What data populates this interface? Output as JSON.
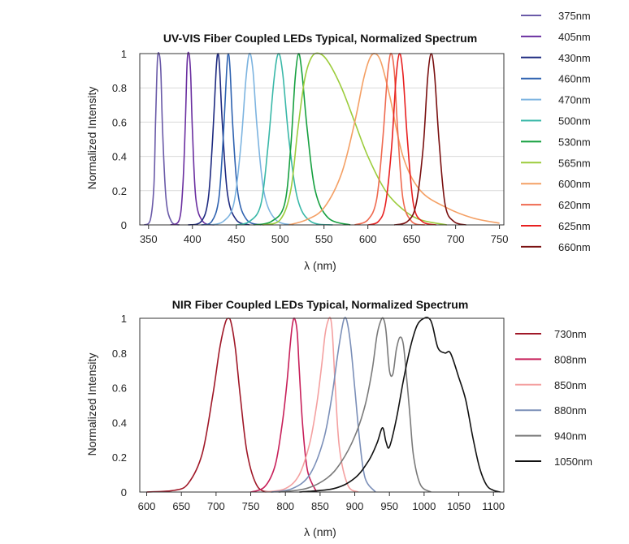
{
  "chart_data": [
    {
      "type": "line",
      "title": "UV-VIS Fiber Coupled LEDs Typical, Normalized Spectrum",
      "xlabel": "λ (nm)",
      "ylabel": "Normalized Intensity",
      "xlim": [
        340,
        755
      ],
      "ylim": [
        0,
        1
      ],
      "xticks": [
        350,
        400,
        450,
        500,
        550,
        600,
        650,
        700,
        750
      ],
      "yticks": [
        0,
        0.2,
        0.4,
        0.6,
        0.8,
        1
      ],
      "ytick_labels": [
        "0",
        "0.2",
        "0.4",
        "0.6",
        "0.8",
        "1"
      ],
      "grid": "horizontal",
      "legend_position": "right",
      "series": [
        {
          "name": "375nm",
          "color": "#6a5aa8",
          "x": [
            345,
            352,
            356,
            358,
            360,
            362,
            364,
            366,
            370,
            376,
            385
          ],
          "y": [
            0,
            0.03,
            0.22,
            0.6,
            0.95,
            1,
            0.9,
            0.55,
            0.15,
            0.02,
            0
          ]
        },
        {
          "name": "405nm",
          "color": "#6a2fa0",
          "x": [
            375,
            385,
            389,
            392,
            394,
            396,
            398,
            400,
            404,
            412,
            425
          ],
          "y": [
            0,
            0.03,
            0.22,
            0.6,
            0.95,
            1,
            0.88,
            0.55,
            0.15,
            0.02,
            0
          ]
        },
        {
          "name": "430nm",
          "color": "#1e2a80",
          "x": [
            395,
            410,
            418,
            423,
            427,
            429,
            431,
            434,
            440,
            450,
            465
          ],
          "y": [
            0,
            0.02,
            0.15,
            0.5,
            0.9,
            1,
            0.92,
            0.6,
            0.18,
            0.03,
            0
          ]
        },
        {
          "name": "460nm",
          "color": "#2f62b0",
          "x": [
            410,
            422,
            430,
            435,
            439,
            441,
            443,
            446,
            452,
            462,
            478
          ],
          "y": [
            0,
            0.02,
            0.15,
            0.5,
            0.9,
            1,
            0.9,
            0.58,
            0.18,
            0.03,
            0
          ]
        },
        {
          "name": "470nm",
          "color": "#7db4e0",
          "x": [
            420,
            435,
            447,
            455,
            461,
            465,
            469,
            474,
            482,
            495,
            515
          ],
          "y": [
            0,
            0.02,
            0.12,
            0.45,
            0.85,
            1,
            0.9,
            0.55,
            0.18,
            0.03,
            0
          ]
        },
        {
          "name": "500nm",
          "color": "#3ab8a8",
          "x": [
            450,
            465,
            478,
            486,
            493,
            498,
            503,
            510,
            520,
            535,
            560
          ],
          "y": [
            0,
            0.02,
            0.12,
            0.45,
            0.85,
            1,
            0.88,
            0.5,
            0.15,
            0.02,
            0
          ]
        },
        {
          "name": "530nm",
          "color": "#16a040",
          "x": [
            470,
            490,
            505,
            512,
            517,
            521,
            525,
            531,
            540,
            555,
            580
          ],
          "y": [
            0,
            0.02,
            0.12,
            0.45,
            0.85,
            1,
            0.88,
            0.55,
            0.2,
            0.04,
            0
          ]
        },
        {
          "name": "565nm",
          "color": "#9ccc3c",
          "x": [
            480,
            500,
            512,
            520,
            528,
            536,
            545,
            555,
            570,
            585,
            600,
            620,
            640,
            660,
            690
          ],
          "y": [
            0,
            0.03,
            0.2,
            0.55,
            0.85,
            0.98,
            1,
            0.95,
            0.8,
            0.6,
            0.4,
            0.2,
            0.09,
            0.03,
            0
          ]
        },
        {
          "name": "600nm",
          "color": "#f4a065",
          "x": [
            510,
            530,
            550,
            570,
            585,
            595,
            602,
            608,
            615,
            625,
            640,
            660,
            690,
            720,
            750
          ],
          "y": [
            0,
            0.03,
            0.1,
            0.3,
            0.6,
            0.85,
            0.97,
            1,
            0.95,
            0.75,
            0.4,
            0.2,
            0.1,
            0.04,
            0.01
          ]
        },
        {
          "name": "620nm",
          "color": "#ef6a50",
          "x": [
            585,
            600,
            610,
            617,
            622,
            626,
            630,
            634,
            640,
            650,
            665
          ],
          "y": [
            0,
            0.03,
            0.15,
            0.5,
            0.85,
            1,
            0.9,
            0.55,
            0.15,
            0.02,
            0
          ]
        },
        {
          "name": "625nm",
          "color": "#e82020",
          "x": [
            600,
            612,
            620,
            627,
            632,
            636,
            640,
            645,
            652,
            662,
            678
          ],
          "y": [
            0,
            0.02,
            0.12,
            0.45,
            0.85,
            1,
            0.88,
            0.5,
            0.12,
            0.02,
            0
          ]
        },
        {
          "name": "660nm",
          "color": "#7a1010",
          "x": [
            630,
            645,
            655,
            663,
            668,
            672,
            676,
            681,
            688,
            698,
            712
          ],
          "y": [
            0,
            0.02,
            0.12,
            0.45,
            0.85,
            1,
            0.88,
            0.5,
            0.12,
            0.02,
            0
          ]
        }
      ]
    },
    {
      "type": "line",
      "title": "NIR Fiber Coupled LEDs Typical, Normalized Spectrum",
      "xlabel": "λ (nm)",
      "ylabel": "Normalized Intensity",
      "xlim": [
        590,
        1115
      ],
      "ylim": [
        0,
        1
      ],
      "xticks": [
        600,
        650,
        700,
        750,
        800,
        850,
        900,
        950,
        1000,
        1050,
        1100
      ],
      "yticks": [
        0,
        0.2,
        0.4,
        0.6,
        0.8,
        1
      ],
      "ytick_labels": [
        "0",
        "0.2",
        "0.4",
        "0.6",
        "0.8",
        "1"
      ],
      "grid": "none",
      "legend_position": "right",
      "series": [
        {
          "name": "730nm",
          "color": "#a01828",
          "x": [
            600,
            640,
            660,
            680,
            695,
            705,
            713,
            718,
            722,
            728,
            735,
            745,
            760,
            780
          ],
          "y": [
            0,
            0.01,
            0.05,
            0.22,
            0.55,
            0.82,
            0.97,
            1,
            0.97,
            0.82,
            0.55,
            0.22,
            0.03,
            0
          ]
        },
        {
          "name": "808nm",
          "color": "#c8205a",
          "x": [
            750,
            770,
            785,
            795,
            802,
            807,
            810,
            813,
            817,
            820,
            825,
            832,
            845
          ],
          "y": [
            0,
            0.03,
            0.15,
            0.38,
            0.62,
            0.85,
            0.96,
            1,
            0.92,
            0.7,
            0.38,
            0.12,
            0
          ]
        },
        {
          "name": "850nm",
          "color": "#f4a0a0",
          "x": [
            770,
            800,
            820,
            835,
            845,
            852,
            857,
            861,
            865,
            868,
            872,
            878,
            890,
            905
          ],
          "y": [
            0,
            0.02,
            0.1,
            0.28,
            0.5,
            0.72,
            0.9,
            0.98,
            1,
            0.9,
            0.6,
            0.25,
            0.04,
            0
          ]
        },
        {
          "name": "880nm",
          "color": "#7b8fb8",
          "x": [
            780,
            810,
            835,
            855,
            867,
            875,
            881,
            885,
            889,
            894,
            900,
            907,
            915,
            930
          ],
          "y": [
            0,
            0.02,
            0.1,
            0.3,
            0.55,
            0.78,
            0.93,
            1,
            0.98,
            0.85,
            0.6,
            0.3,
            0.08,
            0
          ]
        },
        {
          "name": "940nm",
          "color": "#7a7a7a",
          "x": [
            790,
            830,
            860,
            880,
            900,
            915,
            925,
            932,
            937,
            941,
            945,
            950,
            955,
            960,
            965,
            970,
            975,
            980,
            985,
            995,
            1010
          ],
          "y": [
            0,
            0.02,
            0.08,
            0.17,
            0.32,
            0.5,
            0.7,
            0.9,
            0.98,
            1,
            0.93,
            0.7,
            0.68,
            0.82,
            0.89,
            0.85,
            0.65,
            0.42,
            0.2,
            0.04,
            0
          ]
        },
        {
          "name": "1050nm",
          "color": "#111111",
          "x": [
            820,
            870,
            900,
            920,
            932,
            940,
            945,
            950,
            960,
            970,
            980,
            990,
            1000,
            1007,
            1012,
            1020,
            1030,
            1038,
            1050,
            1060,
            1070,
            1080,
            1090,
            1100,
            1110
          ],
          "y": [
            0,
            0.02,
            0.08,
            0.18,
            0.28,
            0.37,
            0.29,
            0.26,
            0.42,
            0.64,
            0.83,
            0.96,
            1,
            1,
            0.96,
            0.83,
            0.8,
            0.8,
            0.66,
            0.53,
            0.32,
            0.14,
            0.04,
            0.01,
            0
          ]
        }
      ]
    }
  ]
}
